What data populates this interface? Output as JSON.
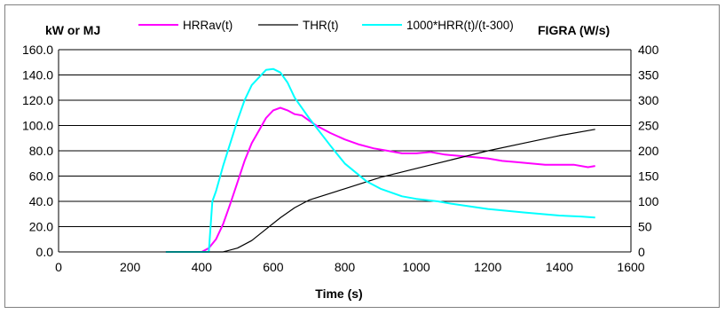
{
  "chart_data": {
    "type": "line",
    "xlabel": "Time (s)",
    "y_left_label": "kW or MJ",
    "y_right_label": "FIGRA (W/s)",
    "xlim": [
      0,
      1600
    ],
    "ylim_left": [
      0,
      160
    ],
    "ylim_right": [
      0,
      400
    ],
    "grid": true,
    "legend_position": "top",
    "x_ticks": [
      "0",
      "200",
      "400",
      "600",
      "800",
      "1000",
      "1200",
      "1400",
      "1600"
    ],
    "y_left_ticks": [
      "0.0",
      "20.0",
      "40.0",
      "60.0",
      "80.0",
      "100.0",
      "120.0",
      "140.0",
      "160.0"
    ],
    "y_right_ticks": [
      "0",
      "50",
      "100",
      "150",
      "200",
      "250",
      "300",
      "350",
      "400"
    ],
    "series": [
      {
        "name": "HRRav(t)",
        "color": "#ff00ff",
        "axis": "left",
        "points": [
          [
            300,
            0
          ],
          [
            400,
            0
          ],
          [
            420,
            3
          ],
          [
            440,
            10
          ],
          [
            460,
            22
          ],
          [
            480,
            38
          ],
          [
            500,
            55
          ],
          [
            520,
            72
          ],
          [
            540,
            86
          ],
          [
            560,
            96
          ],
          [
            580,
            106
          ],
          [
            600,
            112
          ],
          [
            620,
            114
          ],
          [
            640,
            112
          ],
          [
            660,
            109
          ],
          [
            680,
            108
          ],
          [
            700,
            104
          ],
          [
            720,
            100
          ],
          [
            760,
            94
          ],
          [
            800,
            89
          ],
          [
            840,
            85
          ],
          [
            880,
            82
          ],
          [
            920,
            80
          ],
          [
            960,
            78
          ],
          [
            1000,
            78
          ],
          [
            1040,
            79
          ],
          [
            1080,
            77
          ],
          [
            1120,
            76
          ],
          [
            1160,
            75
          ],
          [
            1200,
            74
          ],
          [
            1240,
            72
          ],
          [
            1280,
            71
          ],
          [
            1320,
            70
          ],
          [
            1360,
            69
          ],
          [
            1400,
            69
          ],
          [
            1440,
            69
          ],
          [
            1480,
            67
          ],
          [
            1500,
            68
          ]
        ]
      },
      {
        "name": "THR(t)",
        "color": "#000000",
        "axis": "left",
        "points": [
          [
            420,
            0
          ],
          [
            460,
            0
          ],
          [
            500,
            3
          ],
          [
            540,
            9
          ],
          [
            580,
            18
          ],
          [
            620,
            27
          ],
          [
            660,
            35
          ],
          [
            700,
            41
          ],
          [
            800,
            50
          ],
          [
            900,
            59
          ],
          [
            1000,
            66
          ],
          [
            1100,
            73
          ],
          [
            1200,
            80
          ],
          [
            1300,
            86
          ],
          [
            1400,
            92
          ],
          [
            1500,
            97
          ]
        ]
      },
      {
        "name": "1000*HRR(t)/(t-300)",
        "color": "#00ffff",
        "axis": "right",
        "points": [
          [
            300,
            0
          ],
          [
            420,
            0
          ],
          [
            425,
            50
          ],
          [
            430,
            100
          ],
          [
            440,
            120
          ],
          [
            460,
            170
          ],
          [
            480,
            215
          ],
          [
            500,
            260
          ],
          [
            520,
            300
          ],
          [
            540,
            330
          ],
          [
            560,
            345
          ],
          [
            580,
            360
          ],
          [
            600,
            362
          ],
          [
            620,
            355
          ],
          [
            640,
            335
          ],
          [
            660,
            305
          ],
          [
            700,
            265
          ],
          [
            760,
            210
          ],
          [
            800,
            175
          ],
          [
            860,
            140
          ],
          [
            900,
            125
          ],
          [
            960,
            110
          ],
          [
            1000,
            105
          ],
          [
            1060,
            100
          ],
          [
            1100,
            95
          ],
          [
            1200,
            85
          ],
          [
            1300,
            78
          ],
          [
            1400,
            72
          ],
          [
            1460,
            70
          ],
          [
            1500,
            68
          ]
        ]
      }
    ]
  }
}
